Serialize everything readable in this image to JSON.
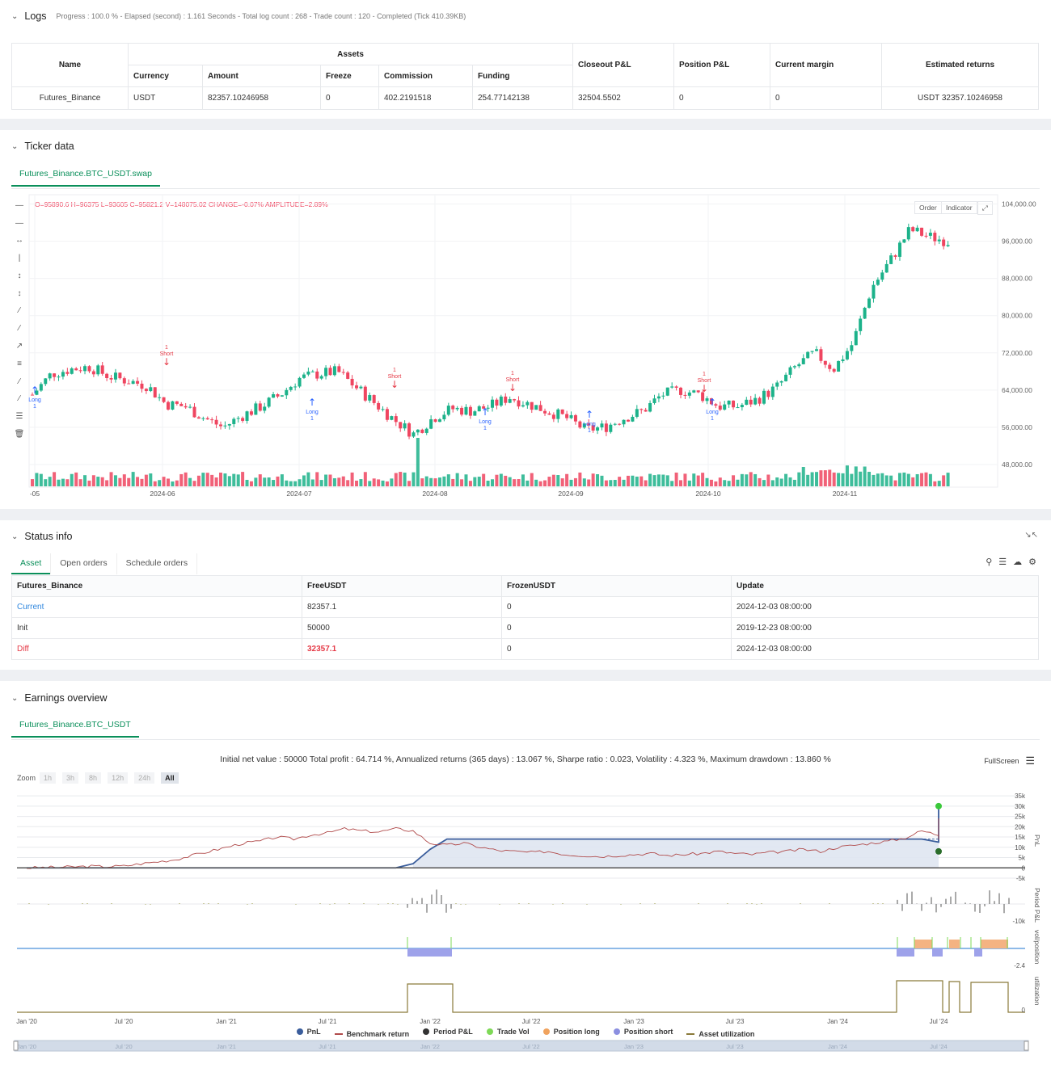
{
  "logs": {
    "title": "Logs",
    "summary": "Progress : 100.0 % - Elapsed (second) : 1.161 Seconds - Total log count : 268 - Trade count : 120 - Completed (Tick 410.39KB)",
    "headers": {
      "name": "Name",
      "assets": "Assets",
      "currency": "Currency",
      "amount": "Amount",
      "freeze": "Freeze",
      "commission": "Commission",
      "funding": "Funding",
      "closeout": "Closeout P&L",
      "position": "Position P&L",
      "margin": "Current margin",
      "estimated": "Estimated returns"
    },
    "row": {
      "name": "Futures_Binance",
      "currency": "USDT",
      "amount": "82357.10246958",
      "freeze": "0",
      "commission": "402.2191518",
      "funding": "254.77142138",
      "closeout": "32504.5502",
      "position": "0",
      "margin": "0",
      "estimated": "USDT 32357.10246958"
    }
  },
  "ticker": {
    "title": "Ticker data",
    "tab": "Futures_Binance.BTC_USDT.swap",
    "ohlc": "O=95890.6 H=96375 L=93605 C=95821.2 V=148075.02 CHANGE=-0.07% AMPLITUDE=2.89%",
    "buttons": {
      "order": "Order",
      "indicator": "Indicator"
    },
    "y_ticks": [
      "104,000.00",
      "96,000.00",
      "88,000.00",
      "80,000.00",
      "72,000.00",
      "64,000.00",
      "56,000.00",
      "48,000.00"
    ],
    "x_ticks": [
      "-05",
      "2024-06",
      "2024-07",
      "2024-08",
      "2024-09",
      "2024-10",
      "2024-11"
    ],
    "markers": [
      {
        "kind": "Long",
        "label": "Long",
        "count": "1",
        "color": "#2962ff"
      },
      {
        "kind": "Short",
        "label": "Short",
        "count": "1",
        "color": "#e53946"
      }
    ]
  },
  "status": {
    "title": "Status info",
    "tabs": [
      "Asset",
      "Open orders",
      "Schedule orders"
    ],
    "headers": [
      "Futures_Binance",
      "FreeUSDT",
      "FrozenUSDT",
      "Update"
    ],
    "rows": [
      {
        "label": "Current",
        "free": "82357.1",
        "frozen": "0",
        "update": "2024-12-03 08:00:00"
      },
      {
        "label": "Init",
        "free": "50000",
        "frozen": "0",
        "update": "2019-12-23 08:00:00"
      },
      {
        "label": "Diff",
        "free": "32357.1",
        "frozen": "0",
        "update": "2024-12-03 08:00:00"
      }
    ]
  },
  "earnings": {
    "title": "Earnings overview",
    "tab": "Futures_Binance.BTC_USDT",
    "summary": "Initial net value : 50000 Total profit : 64.714 %, Annualized returns (365 days) : 13.067 %, Sharpe ratio : 0.023, Volatility : 4.323 %, Maximum drawdown : 13.860 %",
    "fullscreen": "FullScreen",
    "zoom_label": "Zoom",
    "zoom_buttons": [
      "1h",
      "3h",
      "8h",
      "12h",
      "24h",
      "All"
    ],
    "pnl_ticks": [
      "35k",
      "30k",
      "25k",
      "20k",
      "15k",
      "10k",
      "5k",
      "0",
      "-5k"
    ],
    "pnl_axis": "PnL",
    "period_axis": "Period P&L",
    "period_tick": "-10k",
    "vol_axis": "vol/position",
    "vol_tick": "-2.4",
    "util_axis": "utilization",
    "util_tick": "0",
    "x_ticks": [
      "Jan '20",
      "Jul '20",
      "Jan '21",
      "Jul '21",
      "Jan '22",
      "Jul '22",
      "Jan '23",
      "Jul '23",
      "Jan '24",
      "Jul '24"
    ],
    "legend": [
      {
        "label": "PnL",
        "color": "#3a5d9c",
        "shape": "dot"
      },
      {
        "label": "Benchmark return",
        "color": "#b04a4a",
        "shape": "line"
      },
      {
        "label": "Period P&L",
        "color": "#333333",
        "shape": "dot"
      },
      {
        "label": "Trade Vol",
        "color": "#7ed957",
        "shape": "dot"
      },
      {
        "label": "Position long",
        "color": "#f0a35e",
        "shape": "dot"
      },
      {
        "label": "Position short",
        "color": "#8b8fe0",
        "shape": "dot"
      },
      {
        "label": "Asset utilization",
        "color": "#8a7a3a",
        "shape": "line"
      }
    ],
    "navigator_ticks": [
      "Jan '20",
      "Jul '20",
      "Jan '21",
      "Jul '21",
      "Jan '22",
      "Jul '22",
      "Jan '23",
      "Jul '23",
      "Jan '24",
      "Jul '24"
    ]
  },
  "colors": {
    "up": "#1cb28a",
    "down": "#ef4560",
    "accent": "#0a8f5a"
  },
  "chart_data": [
    {
      "type": "candlestick",
      "title": "Futures_Binance.BTC_USDT.swap",
      "ylim": [
        44000,
        106000
      ],
      "x_range": [
        "2024-05",
        "2024-12"
      ],
      "approx_close": [
        63000,
        67500,
        68500,
        69000,
        67000,
        66000,
        65000,
        61000,
        60500,
        58000,
        56000,
        58500,
        60500,
        63000,
        66500,
        67500,
        68000,
        64500,
        61000,
        57500,
        54500,
        58000,
        60000,
        59500,
        60500,
        62500,
        61000,
        59500,
        58000,
        55500,
        56000,
        58000,
        59500,
        63000,
        64000,
        63000,
        60500,
        60500,
        62000,
        64500,
        69000,
        72000,
        68500,
        74000,
        86000,
        92000,
        98500,
        97000,
        96000
      ],
      "volume_trend": "higher in November"
    },
    {
      "type": "line",
      "title": "Earnings overview",
      "series": [
        {
          "name": "PnL",
          "x": [
            "Jan '20",
            "Jan '22",
            "Jul '22",
            "Jul '23",
            "Jan '24",
            "Jul '24",
            "Dec '24"
          ],
          "values": [
            0,
            0,
            14000,
            14000,
            14000,
            25000,
            32000
          ]
        },
        {
          "name": "Benchmark return",
          "x": [
            "Jan '20",
            "Jul '20",
            "Jan '21",
            "Jul '21",
            "Jan '22",
            "Jul '22",
            "Jan '23",
            "Jul '23",
            "Jan '24",
            "Jul '24",
            "Dec '24"
          ],
          "values": [
            0,
            500,
            4000,
            17000,
            19000,
            8000,
            6000,
            8000,
            13000,
            18000,
            26000
          ]
        }
      ],
      "ylim": [
        -5000,
        37000
      ]
    }
  ]
}
